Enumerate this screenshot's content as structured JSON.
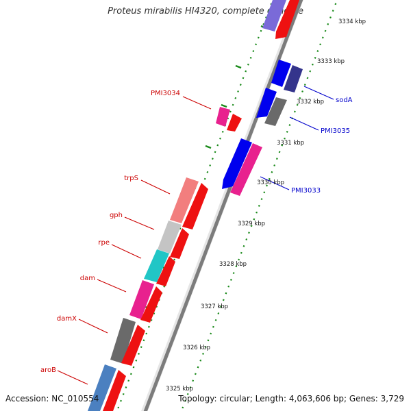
{
  "title": "Proteus mirabilis HI4320, complete genome",
  "footer": {
    "accession": "Accession: NC_010554",
    "summary": "Topology: circular; Length: 4,063,606 bp; Genes: 3,729"
  },
  "colors": {
    "tick": "#1a8a1a",
    "label_red": "#cc0000",
    "label_blue": "#0000cc",
    "backbone": "#8a8a8a"
  },
  "ticks": [
    {
      "label": "3334 kbp"
    },
    {
      "label": "3333 kbp"
    },
    {
      "label": "3332 kbp"
    },
    {
      "label": "3331 kbp"
    },
    {
      "label": "3330 kbp"
    },
    {
      "label": "3329 kbp"
    },
    {
      "label": "3328 kbp"
    },
    {
      "label": "3327 kbp"
    },
    {
      "label": "3326 kbp"
    },
    {
      "label": "3325 kbp"
    }
  ],
  "gene_labels": [
    {
      "name": "PMI3034",
      "strand": "left"
    },
    {
      "name": "trpS",
      "strand": "left"
    },
    {
      "name": "gph",
      "strand": "left"
    },
    {
      "name": "rpe",
      "strand": "left"
    },
    {
      "name": "dam",
      "strand": "left"
    },
    {
      "name": "damX",
      "strand": "left"
    },
    {
      "name": "aroB",
      "strand": "left"
    },
    {
      "name": "sodA",
      "strand": "right"
    },
    {
      "name": "PMI3035",
      "strand": "right"
    },
    {
      "name": "PMI3033",
      "strand": "right"
    }
  ]
}
